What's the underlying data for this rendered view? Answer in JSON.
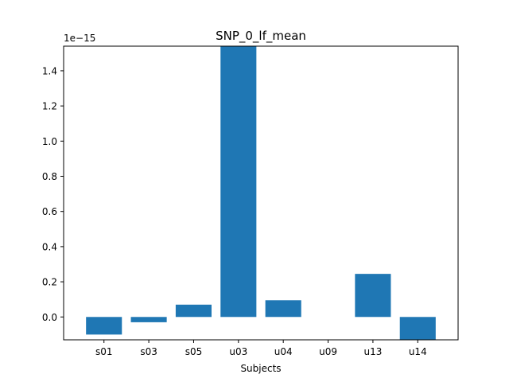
{
  "chart_data": {
    "type": "bar",
    "title": "SNP_0_lf_mean",
    "xlabel": "Subjects",
    "ylabel": "",
    "y_offset_label": "1e−15",
    "categories": [
      "s01",
      "s03",
      "s05",
      "u03",
      "u04",
      "u09",
      "u13",
      "u14"
    ],
    "values": [
      -0.1,
      -0.03,
      0.07,
      1.54,
      0.095,
      0.0,
      0.245,
      -0.13
    ],
    "ylim": [
      -0.13,
      1.54
    ],
    "yticks": [
      0.0,
      0.2,
      0.4,
      0.6,
      0.8,
      1.0,
      1.2,
      1.4
    ],
    "ytick_labels": [
      "0.0",
      "0.2",
      "0.4",
      "0.6",
      "0.8",
      "1.0",
      "1.2",
      "1.4"
    ],
    "bar_color": "#1f77b4",
    "grid": false,
    "legend": "none"
  }
}
